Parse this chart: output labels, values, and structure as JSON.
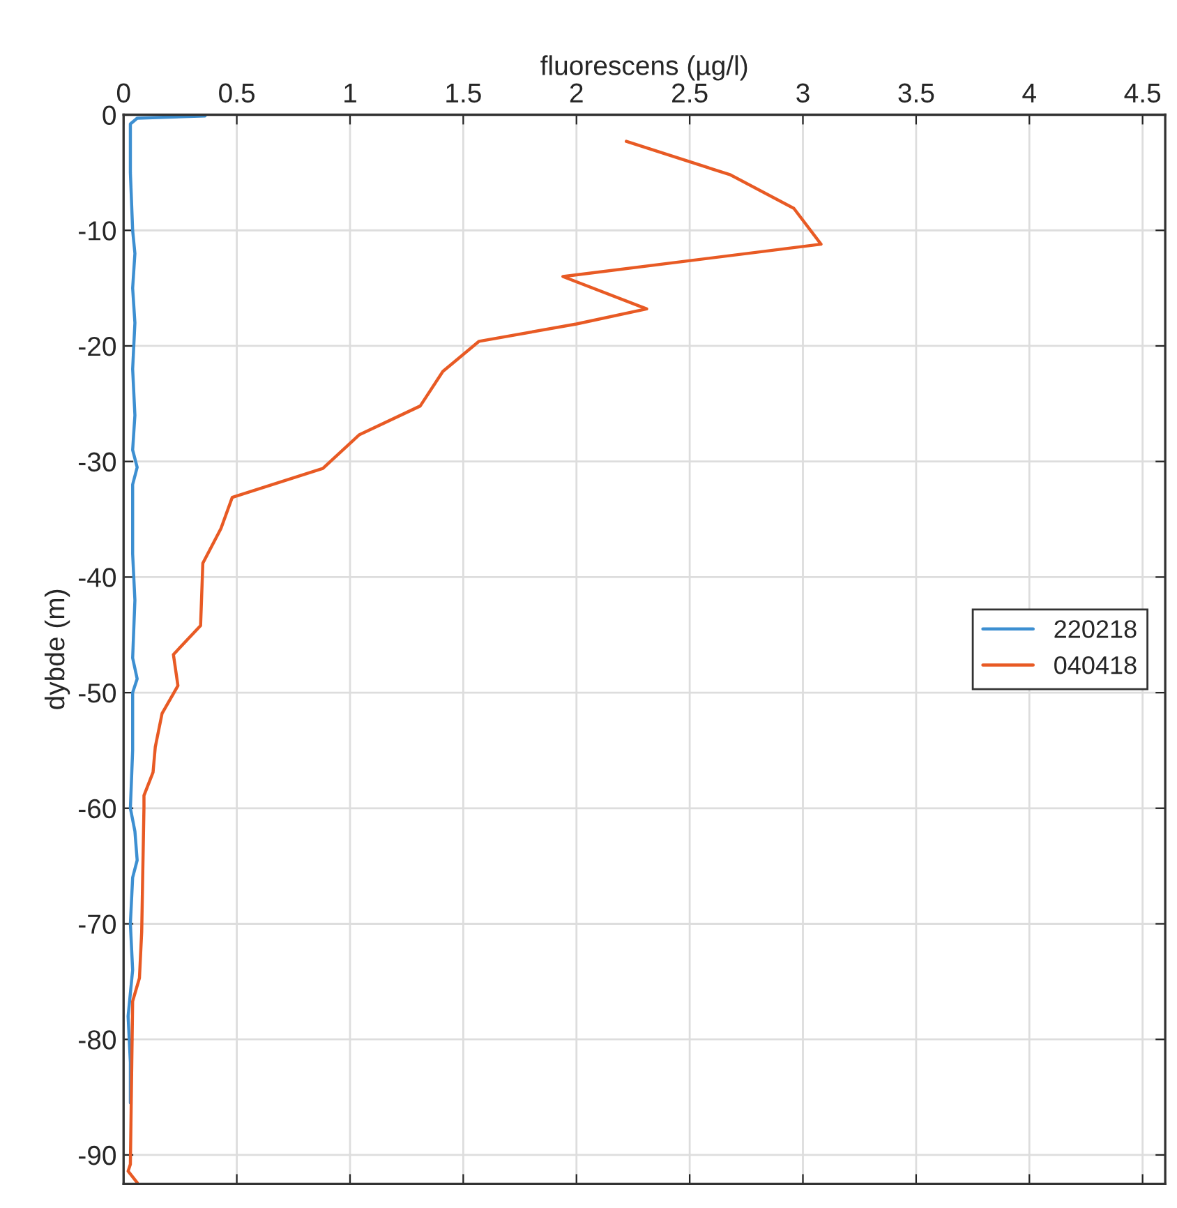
{
  "chart_data": {
    "type": "line",
    "xlabel": "fluorescens (µg/l)",
    "ylabel": "dybde (m)",
    "xlim": [
      0,
      4.6
    ],
    "xticks": [
      0,
      0.5,
      1,
      1.5,
      2,
      2.5,
      3,
      3.5,
      4,
      4.5
    ],
    "ylim": [
      -92.5,
      0
    ],
    "yticks": [
      0,
      -10,
      -20,
      -30,
      -40,
      -50,
      -60,
      -70,
      -80,
      -90
    ],
    "grid": true,
    "legend": "right",
    "marker": "none",
    "line_style": "solid",
    "tick_labels": "xy",
    "series": [
      {
        "name": "220218",
        "color": "#3d8fd1",
        "x": [
          0.36,
          0.06,
          0.03,
          0.03,
          0.04,
          0.05,
          0.04,
          0.05,
          0.04,
          0.05,
          0.04,
          0.06,
          0.04,
          0.04,
          0.05,
          0.04,
          0.06,
          0.04,
          0.04,
          0.03,
          0.05,
          0.06,
          0.04,
          0.03,
          0.04,
          0.02,
          0.03,
          0.03
        ],
        "values": [
          -0.1,
          -0.3,
          -0.8,
          -5,
          -10,
          -12,
          -15,
          -18,
          -22,
          -26,
          -29,
          -30.5,
          -32,
          -38,
          -42,
          -47,
          -48.8,
          -50,
          -55,
          -60,
          -62,
          -64.5,
          -66,
          -70,
          -74,
          -78,
          -82,
          -85.5
        ]
      },
      {
        "name": "040418",
        "color": "#e85a24",
        "x": [
          2.22,
          2.68,
          2.96,
          3.08,
          1.94,
          2.31,
          2.0,
          1.57,
          1.41,
          1.31,
          1.04,
          0.88,
          0.48,
          0.43,
          0.35,
          0.34,
          0.22,
          0.24,
          0.17,
          0.14,
          0.13,
          0.09,
          0.09,
          0.08,
          0.07,
          0.04,
          0.03,
          0.02,
          0.06
        ],
        "values": [
          -2.3,
          -5.2,
          -8.1,
          -11.2,
          -14.0,
          -16.8,
          -18.1,
          -19.6,
          -22.2,
          -25.2,
          -27.7,
          -30.6,
          -33.1,
          -35.8,
          -38.8,
          -44.2,
          -46.7,
          -49.4,
          -51.8,
          -54.7,
          -56.9,
          -58.9,
          -59.9,
          -70.7,
          -74.7,
          -76.7,
          -90.8,
          -91.4,
          -92.4
        ]
      }
    ]
  }
}
